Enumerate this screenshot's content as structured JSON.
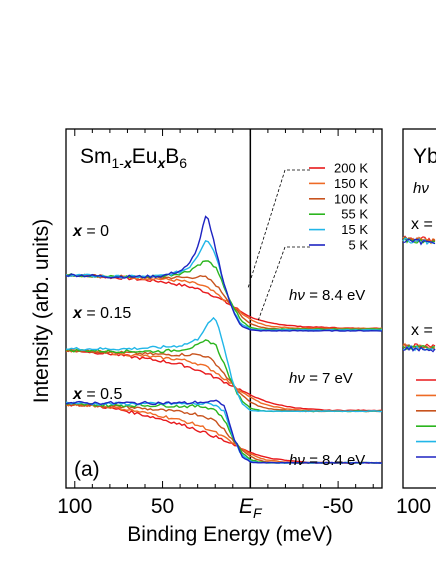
{
  "chart_data": [
    {
      "type": "line",
      "panel_label": "(a)",
      "title": {
        "prefix": "Sm",
        "sub1": "1-",
        "sub1_italic": "x",
        "mid": "Eu",
        "sub2_italic": "x",
        "suffix": "B",
        "sub3": "6"
      },
      "xlabel": "Binding Energy (meV)",
      "ylabel": "Intensity (arb. units)",
      "xlim": [
        105,
        -75
      ],
      "x_reversed": true,
      "xticks": [
        {
          "value": 100,
          "label": "100"
        },
        {
          "value": 50,
          "label": "50"
        },
        {
          "value": 0,
          "label": "E",
          "label_sub": "F"
        },
        {
          "value": -50,
          "label": "-50"
        }
      ],
      "fermi_line_at": 0,
      "legend": {
        "placement": "top-right",
        "entries": [
          {
            "name": "200 K",
            "color": "#e8191c"
          },
          {
            "name": "150 K",
            "color": "#ee6a25"
          },
          {
            "name": "100 K",
            "color": "#c8531e"
          },
          {
            "name": "55 K",
            "color": "#2bb51e"
          },
          {
            "name": "15 K",
            "color": "#21b6e8"
          },
          {
            "name": "5 K",
            "color": "#1e24c2"
          }
        ]
      },
      "groups": [
        {
          "x_label_var": "x",
          "x_label_rest": " = 0",
          "hv_text": "8.4 eV",
          "offset": 2.0
        },
        {
          "x_label_var": "x",
          "x_label_rest": " = 0.15",
          "hv_text": "7 eV",
          "offset": 1.0
        },
        {
          "x_label_var": "x",
          "x_label_rest": " = 0.5",
          "hv_text": "8.4 eV",
          "offset": 0.0
        }
      ],
      "hv_prefix": "hν = ",
      "x": [
        100,
        90,
        80,
        70,
        60,
        50,
        40,
        35,
        30,
        25,
        20,
        15,
        10,
        5,
        0,
        -5,
        -10,
        -20,
        -30,
        -45,
        -60,
        -70
      ],
      "series": [
        {
          "name": "x = 0, 200 K",
          "group": 0,
          "color": "#e8191c",
          "values": [
            2.28,
            2.27,
            2.25,
            2.24,
            2.22,
            2.2,
            2.16,
            2.14,
            2.11,
            2.07,
            2.02,
            1.96,
            1.9,
            1.83,
            1.77,
            1.73,
            1.7,
            1.67,
            1.65,
            1.64,
            1.63,
            1.63
          ]
        },
        {
          "name": "x = 0, 150 K",
          "group": 0,
          "color": "#ee6a25",
          "values": [
            2.28,
            2.27,
            2.26,
            2.25,
            2.24,
            2.23,
            2.21,
            2.19,
            2.17,
            2.13,
            2.06,
            1.98,
            1.9,
            1.81,
            1.74,
            1.69,
            1.66,
            1.64,
            1.63,
            1.63,
            1.63,
            1.63
          ]
        },
        {
          "name": "x = 0, 100 K",
          "group": 0,
          "color": "#c8531e",
          "values": [
            2.28,
            2.27,
            2.26,
            2.26,
            2.25,
            2.25,
            2.25,
            2.25,
            2.26,
            2.25,
            2.17,
            2.04,
            1.9,
            1.77,
            1.69,
            1.65,
            1.63,
            1.62,
            1.62,
            1.62,
            1.62,
            1.62
          ]
        },
        {
          "name": "x = 0, 55 K",
          "group": 0,
          "color": "#2bb51e",
          "values": [
            2.28,
            2.27,
            2.26,
            2.26,
            2.26,
            2.27,
            2.3,
            2.33,
            2.4,
            2.46,
            2.38,
            2.14,
            1.89,
            1.72,
            1.64,
            1.62,
            1.62,
            1.62,
            1.62,
            1.62,
            1.62,
            1.62
          ]
        },
        {
          "name": "x = 0, 15 K",
          "group": 0,
          "color": "#21b6e8",
          "values": [
            2.28,
            2.27,
            2.26,
            2.26,
            2.26,
            2.27,
            2.32,
            2.37,
            2.52,
            2.73,
            2.55,
            2.18,
            1.86,
            1.68,
            1.62,
            1.61,
            1.61,
            1.61,
            1.61,
            1.61,
            1.61,
            1.61
          ]
        },
        {
          "name": "x = 0, 5 K",
          "group": 0,
          "color": "#1e24c2",
          "values": [
            2.28,
            2.27,
            2.26,
            2.26,
            2.26,
            2.27,
            2.33,
            2.4,
            2.62,
            3.03,
            2.62,
            2.18,
            1.84,
            1.66,
            1.61,
            1.6,
            1.6,
            1.6,
            1.6,
            1.6,
            1.6,
            1.6
          ]
        },
        {
          "name": "x = 0.15, 200 K",
          "group": 1,
          "color": "#e8191c",
          "values": [
            1.36,
            1.34,
            1.32,
            1.29,
            1.26,
            1.23,
            1.19,
            1.16,
            1.12,
            1.08,
            1.03,
            0.98,
            0.93,
            0.87,
            0.82,
            0.77,
            0.73,
            0.68,
            0.65,
            0.63,
            0.63,
            0.63
          ]
        },
        {
          "name": "x = 0.15, 150 K",
          "group": 1,
          "color": "#ee6a25",
          "values": [
            1.36,
            1.35,
            1.33,
            1.31,
            1.29,
            1.27,
            1.25,
            1.23,
            1.2,
            1.16,
            1.1,
            1.02,
            0.94,
            0.86,
            0.79,
            0.73,
            0.69,
            0.65,
            0.63,
            0.62,
            0.62,
            0.62
          ]
        },
        {
          "name": "x = 0.15, 100 K",
          "group": 1,
          "color": "#c8531e",
          "values": [
            1.36,
            1.35,
            1.34,
            1.33,
            1.32,
            1.31,
            1.31,
            1.31,
            1.31,
            1.29,
            1.21,
            1.08,
            0.94,
            0.82,
            0.73,
            0.68,
            0.65,
            0.63,
            0.62,
            0.62,
            0.62,
            0.62
          ]
        },
        {
          "name": "x = 0.15, 55 K",
          "group": 1,
          "color": "#2bb51e",
          "values": [
            1.36,
            1.36,
            1.35,
            1.35,
            1.35,
            1.35,
            1.37,
            1.39,
            1.42,
            1.48,
            1.44,
            1.2,
            0.94,
            0.75,
            0.66,
            0.63,
            0.62,
            0.62,
            0.62,
            0.62,
            0.62,
            0.62
          ]
        },
        {
          "name": "x = 0.15, 15 K",
          "group": 1,
          "color": "#21b6e8",
          "values": [
            1.38,
            1.38,
            1.38,
            1.38,
            1.39,
            1.4,
            1.42,
            1.45,
            1.5,
            1.66,
            1.77,
            1.4,
            0.98,
            0.72,
            0.63,
            0.62,
            0.62,
            0.62,
            0.62,
            0.62,
            0.62,
            0.62
          ]
        }
      ]
    },
    {
      "type": "line",
      "partial": true,
      "title_visible": "Yb",
      "hv_visible": "hν",
      "group_labels_visible": [
        "x =",
        "x ="
      ],
      "xtick_visible": "100"
    }
  ]
}
